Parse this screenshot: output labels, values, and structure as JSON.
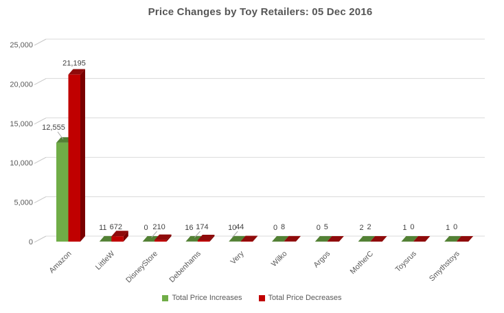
{
  "title": "Price Changes by Toy Retailers: 05 Dec 2016",
  "chart_data": {
    "type": "bar",
    "style": "3d-column",
    "title": "Price Changes by Toy Retailers: 05 Dec 2016",
    "categories": [
      "Amazon",
      "LittleW",
      "DisneyStore",
      "Debenhams",
      "Very",
      "Wilko",
      "Argos",
      "MotherC",
      "Toysrus",
      "Smythstoys"
    ],
    "series": [
      {
        "name": "Total Price Increases",
        "color": "#70AD47",
        "color_top": "#538135",
        "color_side": "#4A732C",
        "values": [
          12555,
          11,
          0,
          16,
          10,
          0,
          0,
          2,
          1,
          1
        ],
        "labels": [
          "12,555",
          "11",
          "0",
          "16",
          "10",
          "0",
          "0",
          "2",
          "1",
          "1"
        ]
      },
      {
        "name": "Total Price Decreases",
        "color": "#C00000",
        "color_top": "#8F0B0B",
        "color_side": "#7A0000",
        "values": [
          21195,
          672,
          210,
          174,
          44,
          8,
          5,
          2,
          0,
          0
        ],
        "labels": [
          "21,195",
          "672",
          "210",
          "174",
          "44",
          "8",
          "5",
          "2",
          "0",
          "0"
        ]
      }
    ],
    "xlabel": "",
    "ylabel": "",
    "ylim": [
      0,
      25000
    ],
    "ytick_step": 5000,
    "yticks": [
      "0",
      "5,000",
      "10,000",
      "15,000",
      "20,000",
      "25,000"
    ],
    "grid": true,
    "legend_position": "bottom",
    "data_labels": true
  },
  "legend": {
    "items": [
      {
        "label": "Total Price Increases",
        "color": "#70AD47"
      },
      {
        "label": "Total Price Decreases",
        "color": "#C00000"
      }
    ]
  },
  "colors": {
    "background": "#FFFFFF",
    "gridline": "#D9D9D9",
    "tick_line": "#C6C6C6",
    "axis_text": "#595959",
    "title_text": "#555555",
    "data_label_text": "#404040",
    "leader_line": "#A6A6A6"
  }
}
